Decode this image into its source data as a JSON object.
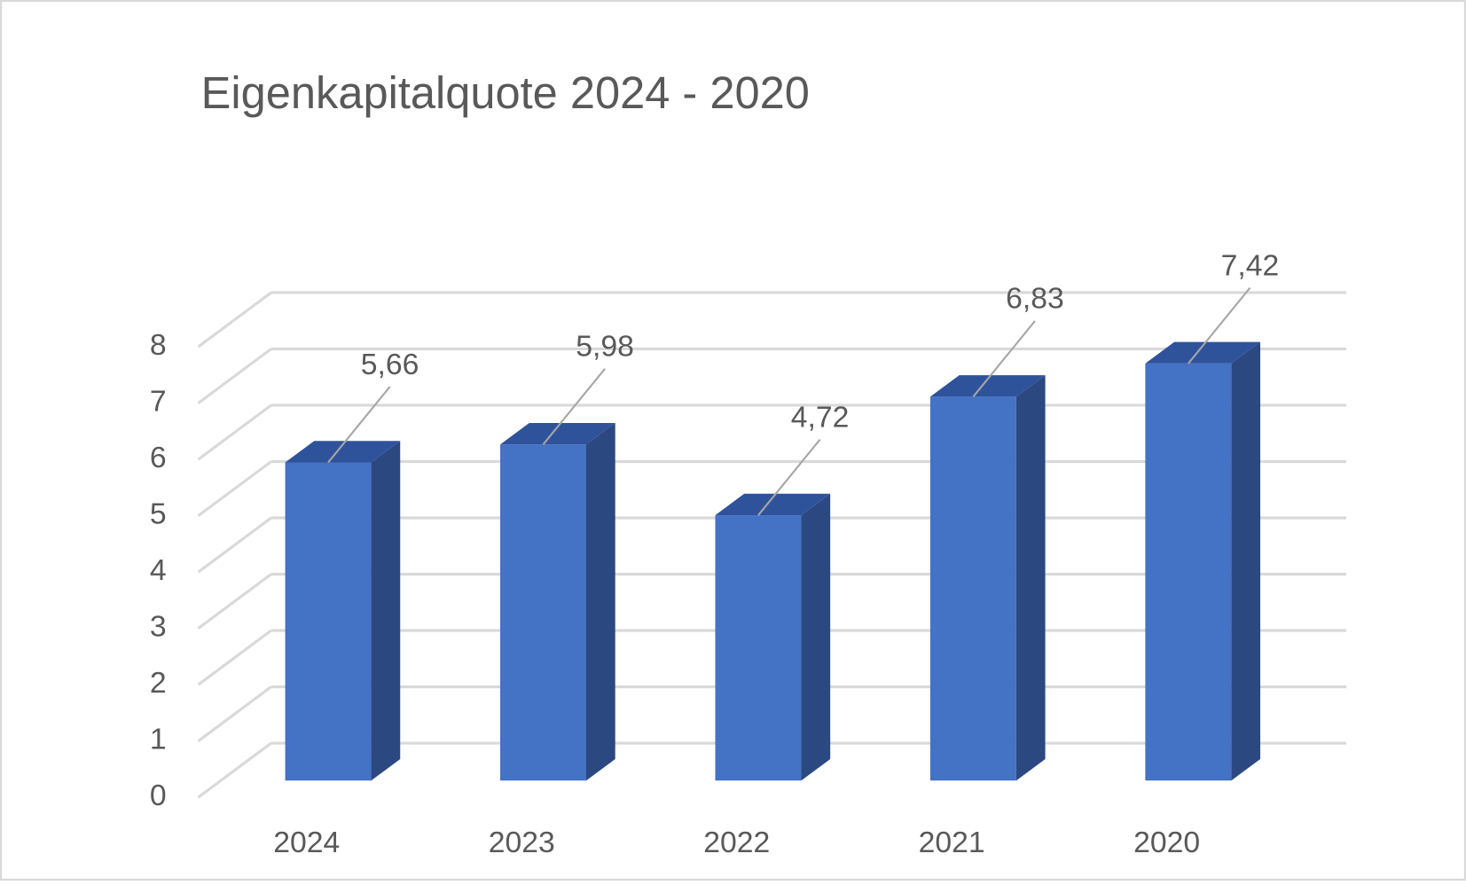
{
  "chart_data": {
    "type": "bar3d",
    "title": "Eigenkapitalquote 2024 - 2020",
    "categories": [
      "2024",
      "2023",
      "2022",
      "2021",
      "2020"
    ],
    "values": [
      5.66,
      5.98,
      4.72,
      6.83,
      7.42
    ],
    "value_labels": [
      "5,66",
      "5,98",
      "4,72",
      "6,83",
      "7,42"
    ],
    "color": "#4472c4",
    "ylim": [
      0,
      8
    ],
    "yticks": [
      0,
      1,
      2,
      3,
      4,
      5,
      6,
      7,
      8
    ],
    "grid": true
  }
}
